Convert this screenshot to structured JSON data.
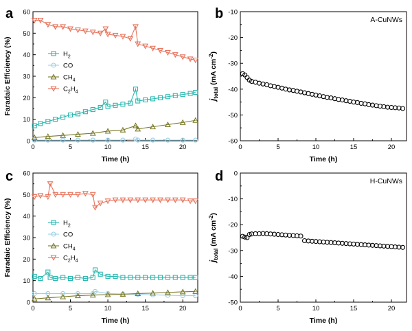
{
  "colors": {
    "h2": "#2ab8b0",
    "co": "#9ad0e6",
    "ch4": "#7a7a2a",
    "c2h4": "#e8735c",
    "axis": "#000000"
  },
  "chart_data": [
    {
      "id": "a",
      "type": "line",
      "panel_letter": "a",
      "xlabel": "Time (h)",
      "ylabel": "Faradaic Efficiency (%)",
      "xlim": [
        0,
        22
      ],
      "ylim": [
        0,
        60
      ],
      "xticks": [
        "0",
        "5",
        "10",
        "15",
        "20"
      ],
      "xtick_values": [
        0,
        5,
        10,
        15,
        20
      ],
      "yticks": [
        "0",
        "10",
        "20",
        "30",
        "40",
        "50",
        "60"
      ],
      "ytick_values": [
        0,
        10,
        20,
        30,
        40,
        50,
        60
      ],
      "legend": [
        {
          "key": "h2",
          "label": "H",
          "sub": "2",
          "marker": "square"
        },
        {
          "key": "co",
          "label": "CO",
          "sub": "",
          "marker": "circle"
        },
        {
          "key": "ch4",
          "label": "CH",
          "sub": "4",
          "marker": "triangle"
        },
        {
          "key": "c2h4",
          "label": "C",
          "sub": "2",
          "label2": "H",
          "sub2": "4",
          "marker": "tri-down"
        }
      ],
      "series": [
        {
          "key": "h2",
          "name": "H2",
          "marker": "square",
          "x": [
            0.2,
            1,
            2,
            3,
            4,
            5,
            6,
            7,
            8,
            9,
            9.7,
            10,
            11,
            12,
            13,
            13.7,
            14,
            15,
            16,
            17,
            18,
            19,
            20,
            21,
            21.7
          ],
          "y": [
            7,
            8,
            9,
            10,
            11,
            12,
            12.5,
            13.5,
            14.5,
            15.5,
            18,
            16,
            16.5,
            17,
            17.5,
            24,
            18.5,
            19,
            19.5,
            20,
            20.5,
            21,
            21.5,
            22,
            22.5
          ]
        },
        {
          "key": "co",
          "name": "CO",
          "marker": "circle",
          "x": [
            0.2,
            2,
            4,
            6,
            8,
            10,
            12,
            13.7,
            14,
            16,
            18,
            20,
            21.7
          ],
          "y": [
            0.3,
            0.3,
            0.3,
            0.3,
            0.3,
            0.3,
            0.3,
            0.8,
            0.3,
            0.3,
            0.3,
            0.3,
            0.3
          ]
        },
        {
          "key": "ch4",
          "name": "CH4",
          "marker": "triangle",
          "x": [
            0.2,
            2,
            4,
            6,
            8,
            10,
            12,
            13.7,
            14,
            16,
            18,
            20,
            21.7
          ],
          "y": [
            1.5,
            2,
            2.5,
            3,
            3.5,
            4.5,
            5,
            7,
            5.5,
            6.5,
            7.5,
            8.5,
            9.5
          ]
        },
        {
          "key": "c2h4",
          "name": "C2H4",
          "marker": "tri-down",
          "x": [
            0.2,
            1,
            2,
            3,
            4,
            5,
            6,
            7,
            8,
            9,
            9.7,
            10,
            11,
            12,
            13,
            13.7,
            14,
            15,
            16,
            17,
            18,
            19,
            20,
            21,
            21.7
          ],
          "y": [
            56,
            56,
            54,
            53,
            53,
            52,
            51.5,
            51,
            50.5,
            50,
            52,
            49.5,
            49,
            48.5,
            47.5,
            53,
            45,
            44,
            43,
            42,
            41,
            40,
            39,
            38,
            37.5
          ]
        }
      ]
    },
    {
      "id": "b",
      "type": "scatter",
      "panel_letter": "b",
      "sample_label": "A-CuNWs",
      "xlabel": "Time (h)",
      "ylabel_main": "j",
      "ylabel_sub": "total",
      "ylabel_rest": " (mA cm",
      "ylabel_sup": "-2",
      "ylabel_end": ")",
      "xlim": [
        0,
        22
      ],
      "ylim": [
        -60,
        -10
      ],
      "xticks": [
        "0",
        "5",
        "10",
        "15",
        "20"
      ],
      "xtick_values": [
        0,
        5,
        10,
        15,
        20
      ],
      "yticks": [
        "-60",
        "-50",
        "-40",
        "-30",
        "-20",
        "-10"
      ],
      "ytick_values": [
        -60,
        -50,
        -40,
        -30,
        -20,
        -10
      ],
      "series": [
        {
          "name": "A-CuNWs",
          "marker": "circle",
          "x": [
            0.3,
            0.6,
            0.9,
            1.2,
            1.5,
            2,
            2.5,
            3,
            3.5,
            4,
            4.5,
            5,
            5.5,
            6,
            6.5,
            7,
            7.5,
            8,
            8.5,
            9,
            9.5,
            10,
            10.5,
            11,
            11.5,
            12,
            12.5,
            13,
            13.5,
            14,
            14.5,
            15,
            15.5,
            16,
            16.5,
            17,
            17.5,
            18,
            18.5,
            19,
            19.5,
            20,
            20.5,
            21,
            21.5
          ],
          "y": [
            -34,
            -34.5,
            -35.5,
            -36.5,
            -37,
            -37.3,
            -37.7,
            -38,
            -38.3,
            -38.7,
            -39,
            -39.3,
            -39.6,
            -40,
            -40.3,
            -40.5,
            -40.8,
            -41.1,
            -41.4,
            -41.7,
            -42,
            -42.3,
            -42.6,
            -42.9,
            -43.2,
            -43.4,
            -43.7,
            -44,
            -44.2,
            -44.5,
            -44.7,
            -45,
            -45.2,
            -45.5,
            -45.7,
            -46,
            -46.2,
            -46.4,
            -46.6,
            -46.8,
            -47,
            -47.1,
            -47.2,
            -47.3,
            -47.5
          ]
        }
      ]
    },
    {
      "id": "c",
      "type": "line",
      "panel_letter": "c",
      "xlabel": "Time (h)",
      "ylabel": "Faradaic Efficiency (%)",
      "xlim": [
        0,
        22
      ],
      "ylim": [
        0,
        60
      ],
      "xticks": [
        "0",
        "5",
        "10",
        "15",
        "20"
      ],
      "xtick_values": [
        0,
        5,
        10,
        15,
        20
      ],
      "yticks": [
        "0",
        "10",
        "20",
        "30",
        "40",
        "50",
        "60"
      ],
      "ytick_values": [
        0,
        10,
        20,
        30,
        40,
        50,
        60
      ],
      "legend": [
        {
          "key": "h2",
          "label": "H",
          "sub": "2",
          "marker": "square"
        },
        {
          "key": "co",
          "label": "CO",
          "sub": "",
          "marker": "circle"
        },
        {
          "key": "ch4",
          "label": "CH",
          "sub": "4",
          "marker": "triangle"
        },
        {
          "key": "c2h4",
          "label": "C",
          "sub": "2",
          "label2": "H",
          "sub2": "4",
          "marker": "tri-down"
        }
      ],
      "series": [
        {
          "key": "h2",
          "name": "H2",
          "marker": "square",
          "x": [
            0.2,
            1,
            2,
            2.3,
            3,
            4,
            5,
            6,
            7,
            8,
            8.3,
            9,
            10,
            11,
            12,
            13,
            14,
            15,
            16,
            17,
            18,
            19,
            20,
            21,
            21.7
          ],
          "y": [
            12,
            11,
            14,
            11.5,
            11,
            11.5,
            11,
            11.5,
            11,
            11.5,
            15,
            13,
            12,
            12,
            11.5,
            11.5,
            11.5,
            11.5,
            11.5,
            11.5,
            11.5,
            11.5,
            11.5,
            11.5,
            11.5
          ]
        },
        {
          "key": "co",
          "name": "CO",
          "marker": "circle",
          "x": [
            0.2,
            2,
            4,
            6,
            8,
            8.3,
            10,
            12,
            14,
            16,
            18,
            20,
            21.7
          ],
          "y": [
            4,
            4,
            4,
            4,
            4,
            5,
            4,
            3.8,
            3.6,
            3.4,
            3.2,
            3,
            3
          ]
        },
        {
          "key": "ch4",
          "name": "CH4",
          "marker": "triangle",
          "x": [
            0.2,
            2,
            4,
            6,
            8,
            10,
            12,
            14,
            16,
            18,
            20,
            21.7
          ],
          "y": [
            1.5,
            2,
            2.5,
            3,
            3.3,
            3.5,
            3.7,
            4,
            4.2,
            4.5,
            4.8,
            5
          ]
        },
        {
          "key": "c2h4",
          "name": "C2H4",
          "marker": "tri-down",
          "x": [
            0.2,
            1,
            2,
            2.3,
            3,
            4,
            5,
            6,
            7,
            8,
            8.3,
            9,
            10,
            11,
            12,
            13,
            14,
            15,
            16,
            17,
            18,
            19,
            20,
            21,
            21.7
          ],
          "y": [
            49,
            49.5,
            49,
            55,
            50,
            50,
            50,
            50,
            50.5,
            50,
            44,
            46,
            47,
            47.5,
            47.5,
            47.5,
            47.5,
            47.5,
            47.5,
            47.5,
            47.5,
            47.5,
            47.5,
            47,
            47
          ]
        }
      ]
    },
    {
      "id": "d",
      "type": "scatter",
      "panel_letter": "d",
      "sample_label": "H-CuNWs",
      "xlabel": "Time (h)",
      "ylabel_main": "j",
      "ylabel_sub": "total",
      "ylabel_rest": " (mA cm",
      "ylabel_sup": "-2",
      "ylabel_end": ")",
      "xlim": [
        0,
        22
      ],
      "ylim": [
        -50,
        0
      ],
      "xticks": [
        "0",
        "5",
        "10",
        "15",
        "20"
      ],
      "xtick_values": [
        0,
        5,
        10,
        15,
        20
      ],
      "yticks": [
        "-50",
        "-40",
        "-30",
        "-20",
        "-10",
        "0"
      ],
      "ytick_values": [
        -50,
        -40,
        -30,
        -20,
        -10,
        0
      ],
      "series": [
        {
          "name": "H-CuNWs",
          "marker": "circle",
          "x": [
            0.3,
            0.6,
            0.9,
            1.2,
            1.5,
            2,
            2.5,
            3,
            3.5,
            4,
            4.5,
            5,
            5.5,
            6,
            6.5,
            7,
            7.5,
            8,
            8.5,
            9,
            9.5,
            10,
            10.5,
            11,
            11.5,
            12,
            12.5,
            13,
            13.5,
            14,
            14.5,
            15,
            15.5,
            16,
            16.5,
            17,
            17.5,
            18,
            18.5,
            19,
            19.5,
            20,
            20.5,
            21,
            21.5
          ],
          "y": [
            -24.5,
            -24.8,
            -25,
            -23.8,
            -23.6,
            -23.5,
            -23.5,
            -23.4,
            -23.5,
            -23.6,
            -23.7,
            -23.8,
            -23.9,
            -24,
            -24.1,
            -24.2,
            -24.3,
            -24.4,
            -26.2,
            -26.3,
            -26.4,
            -26.5,
            -26.6,
            -26.7,
            -26.8,
            -26.9,
            -27,
            -27.1,
            -27.2,
            -27.3,
            -27.4,
            -27.5,
            -27.6,
            -27.7,
            -27.8,
            -27.9,
            -28,
            -28.1,
            -28.2,
            -28.3,
            -28.4,
            -28.5,
            -28.6,
            -28.7,
            -28.8
          ]
        }
      ]
    }
  ]
}
